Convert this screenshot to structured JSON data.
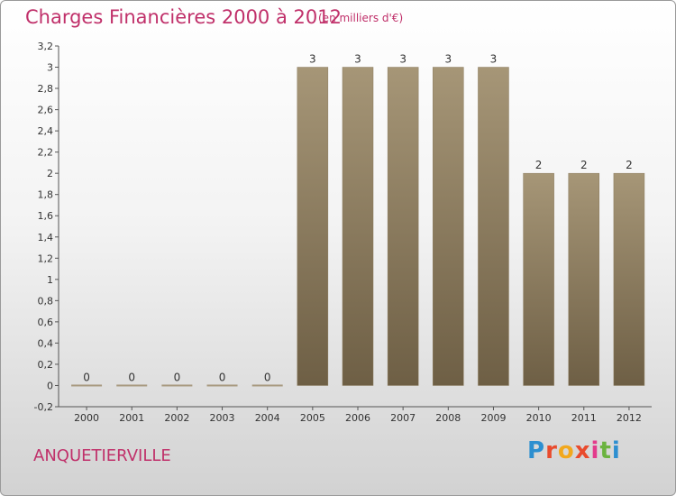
{
  "header": {
    "title": "Charges Financières 2000 à 2012",
    "subtitle": "(en milliers d'€)"
  },
  "footer": {
    "location": "ANQUETIERVILLE",
    "logo": {
      "letters": [
        "P",
        "r",
        "o",
        "x",
        "i",
        "t",
        "i"
      ]
    }
  },
  "chart_data": {
    "type": "bar",
    "title": "Charges Financières 2000 à 2012",
    "subtitle": "(en milliers d'€)",
    "categories": [
      "2000",
      "2001",
      "2002",
      "2003",
      "2004",
      "2005",
      "2006",
      "2007",
      "2008",
      "2009",
      "2010",
      "2011",
      "2012"
    ],
    "values": [
      0,
      0,
      0,
      0,
      0,
      3,
      3,
      3,
      3,
      3,
      2,
      2,
      2
    ],
    "data_labels": [
      "0",
      "0",
      "0",
      "0",
      "0",
      "3",
      "3",
      "3",
      "3",
      "3",
      "2",
      "2",
      "2"
    ],
    "ylim": [
      -0.2,
      3.2
    ],
    "yticks": [
      -0.2,
      0,
      0.2,
      0.4,
      0.6,
      0.8,
      1,
      1.2,
      1.4,
      1.6,
      1.8,
      2,
      2.2,
      2.4,
      2.6,
      2.8,
      3,
      3.2
    ],
    "ytick_labels": [
      "-0,2",
      "0",
      "0,2",
      "0,4",
      "0,6",
      "0,8",
      "1",
      "1,2",
      "1,4",
      "1,6",
      "1,8",
      "2",
      "2,2",
      "2,4",
      "2,6",
      "2,8",
      "3",
      "3,2"
    ],
    "grid": false,
    "colors": {
      "bar_top": "#a69677",
      "bar_bottom": "#6e5f45",
      "zero_bar": "#a89a80"
    }
  }
}
